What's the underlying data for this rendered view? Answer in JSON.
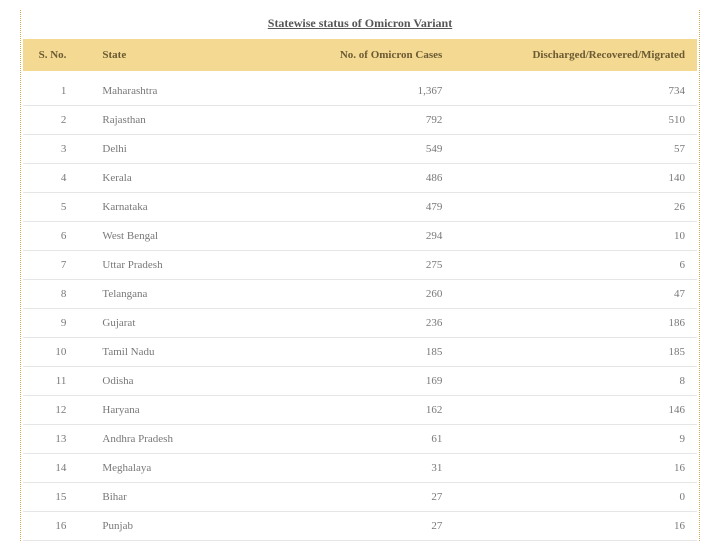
{
  "title": "Statewise status of Omicron Variant",
  "columns": {
    "sno": "S. No.",
    "state": "State",
    "cases": "No. of Omicron Cases",
    "recovered": "Discharged/Recovered/Migrated"
  },
  "styling": {
    "header_bg": "#f3d991",
    "header_text_color": "#6b5a33",
    "body_text_color": "#787878",
    "row_border_color": "#e6e6e6",
    "outer_border_color": "#d4a95a",
    "title_color": "#565656",
    "font_family": "Georgia",
    "header_fontsize": 11,
    "body_fontsize": 11,
    "title_fontsize": 12,
    "background_color": "#ffffff",
    "column_alignments": [
      "right",
      "left",
      "right",
      "right"
    ],
    "column_widths_pct": [
      10,
      24,
      30,
      36
    ]
  },
  "rows": [
    {
      "sno": "1",
      "state": "Maharashtra",
      "cases": "1,367",
      "recovered": "734"
    },
    {
      "sno": "2",
      "state": "Rajasthan",
      "cases": "792",
      "recovered": "510"
    },
    {
      "sno": "3",
      "state": "Delhi",
      "cases": "549",
      "recovered": "57"
    },
    {
      "sno": "4",
      "state": "Kerala",
      "cases": "486",
      "recovered": "140"
    },
    {
      "sno": "5",
      "state": "Karnataka",
      "cases": "479",
      "recovered": "26"
    },
    {
      "sno": "6",
      "state": "West Bengal",
      "cases": "294",
      "recovered": "10"
    },
    {
      "sno": "7",
      "state": "Uttar Pradesh",
      "cases": "275",
      "recovered": "6"
    },
    {
      "sno": "8",
      "state": "Telangana",
      "cases": "260",
      "recovered": "47"
    },
    {
      "sno": "9",
      "state": "Gujarat",
      "cases": "236",
      "recovered": "186"
    },
    {
      "sno": "10",
      "state": "Tamil Nadu",
      "cases": "185",
      "recovered": "185"
    },
    {
      "sno": "11",
      "state": "Odisha",
      "cases": "169",
      "recovered": "8"
    },
    {
      "sno": "12",
      "state": "Haryana",
      "cases": "162",
      "recovered": "146"
    },
    {
      "sno": "13",
      "state": "Andhra Pradesh",
      "cases": "61",
      "recovered": "9"
    },
    {
      "sno": "14",
      "state": "Meghalaya",
      "cases": "31",
      "recovered": "16"
    },
    {
      "sno": "15",
      "state": "Bihar",
      "cases": "27",
      "recovered": "0"
    },
    {
      "sno": "16",
      "state": "Punjab",
      "cases": "27",
      "recovered": "16"
    }
  ]
}
